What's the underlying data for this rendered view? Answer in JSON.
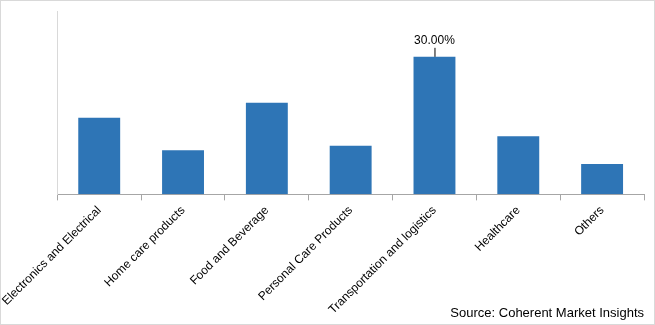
{
  "chart_data": {
    "type": "bar",
    "categories": [
      "Electronics and Electrical",
      "Home care products",
      "Food and Beverage",
      "Personal Care Products",
      "Transportation and logistics",
      "Healthcare",
      "Others"
    ],
    "values": [
      16.7,
      9.6,
      20,
      10.6,
      30,
      12.7,
      6.6
    ],
    "color": "#2e75b6",
    "ylim": [
      0,
      40
    ],
    "yticks": [],
    "grid": false,
    "tick_labels": "x",
    "annotations": [
      {
        "category": "Transportation and logistics",
        "value": 30,
        "label": "30.00%"
      }
    ],
    "source": "Source: Coherent Market Insights"
  }
}
